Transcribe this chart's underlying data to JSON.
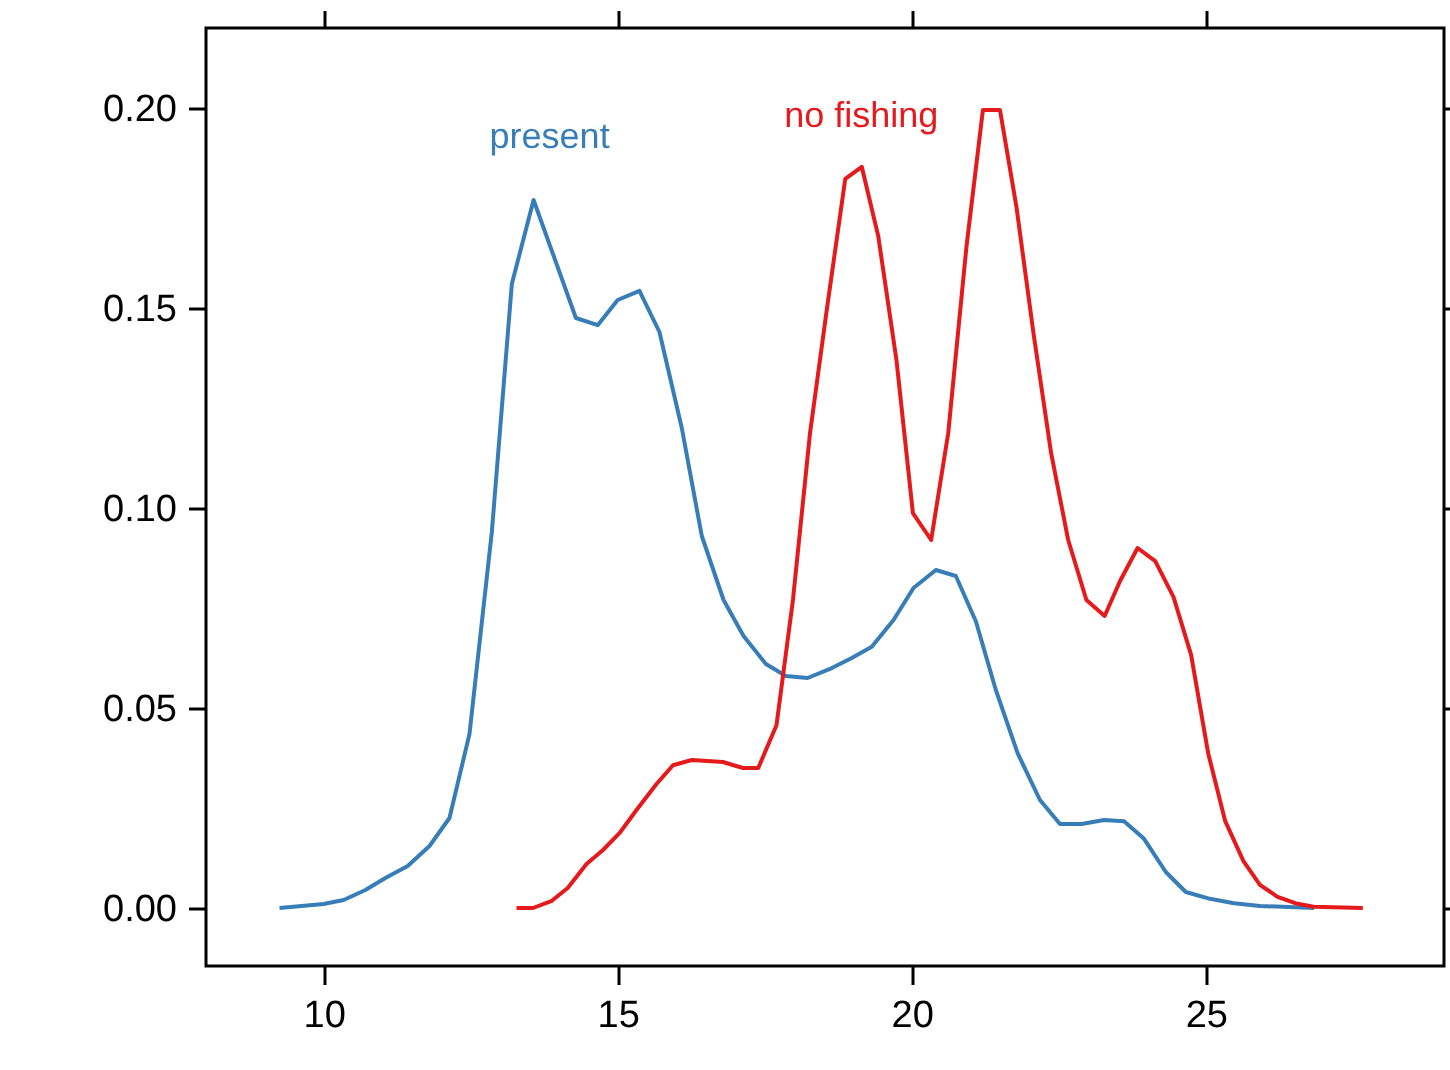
{
  "chart_data": {
    "type": "line",
    "xlim": [
      8.0,
      29.05
    ],
    "ylim": [
      -0.0145,
      0.22
    ],
    "xticks": [
      10,
      15,
      20,
      25
    ],
    "yticks": [
      {
        "value": 0,
        "label": "0.00"
      },
      {
        "value": 0.05,
        "label": "0.05"
      },
      {
        "value": 0.1,
        "label": "0.10"
      },
      {
        "value": 0.15,
        "label": "0.15"
      },
      {
        "value": 0.2,
        "label": "0.20"
      }
    ],
    "grid": false,
    "marker": "none",
    "line_style": "solid",
    "series": [
      {
        "name": "present",
        "color": "#377eb8",
        "x": [
          9.25,
          10.0,
          10.34,
          10.71,
          11.05,
          11.43,
          11.8,
          12.14,
          12.48,
          12.86,
          13.2,
          13.57,
          14.29,
          14.66,
          15.0,
          15.37,
          15.71,
          16.09,
          16.43,
          16.8,
          17.14,
          17.52,
          17.86,
          18.23,
          18.6,
          18.98,
          19.32,
          19.69,
          20.03,
          20.41,
          20.75,
          21.09,
          21.43,
          21.8,
          22.18,
          22.52,
          22.89,
          23.27,
          23.61,
          23.95,
          24.32,
          24.66,
          25.07,
          25.48,
          25.92,
          26.84
        ],
        "values": [
          0.0,
          0.001,
          0.002,
          0.0045,
          0.0075,
          0.0105,
          0.0155,
          0.0225,
          0.0435,
          0.094,
          0.156,
          0.177,
          0.1475,
          0.1457,
          0.152,
          0.1543,
          0.144,
          0.12,
          0.093,
          0.077,
          0.068,
          0.061,
          0.058,
          0.0575,
          0.0597,
          0.0625,
          0.0653,
          0.072,
          0.08,
          0.0845,
          0.083,
          0.0717,
          0.0545,
          0.0387,
          0.027,
          0.021,
          0.021,
          0.022,
          0.0217,
          0.0173,
          0.009,
          0.004,
          0.0023,
          0.0012,
          0.0005,
          0.0
        ]
      },
      {
        "name": "no fishing",
        "color": "#e41a1c",
        "x": [
          13.28,
          13.56,
          13.87,
          14.15,
          14.47,
          14.75,
          15.03,
          15.32,
          15.66,
          15.94,
          16.26,
          16.79,
          17.13,
          17.39,
          17.7,
          17.98,
          18.27,
          18.55,
          18.87,
          19.15,
          19.43,
          19.74,
          20.02,
          20.33,
          20.62,
          20.93,
          21.21,
          21.5,
          21.78,
          22.07,
          22.37,
          22.66,
          22.97,
          23.28,
          23.54,
          23.84,
          24.14,
          24.45,
          24.75,
          25.04,
          25.33,
          25.64,
          25.92,
          26.22,
          26.52,
          26.83,
          27.67
        ],
        "values": [
          0.0,
          0.0,
          0.0017,
          0.005,
          0.011,
          0.0145,
          0.0187,
          0.0245,
          0.031,
          0.0357,
          0.037,
          0.0365,
          0.035,
          0.035,
          0.0457,
          0.077,
          0.1187,
          0.149,
          0.1823,
          0.1853,
          0.168,
          0.137,
          0.0987,
          0.092,
          0.1187,
          0.1653,
          0.1995,
          0.1995,
          0.1753,
          0.1437,
          0.1137,
          0.092,
          0.077,
          0.073,
          0.0817,
          0.09,
          0.0867,
          0.0778,
          0.0633,
          0.0387,
          0.0217,
          0.0117,
          0.0058,
          0.0028,
          0.0012,
          0.0003,
          0.0
        ]
      }
    ]
  }
}
